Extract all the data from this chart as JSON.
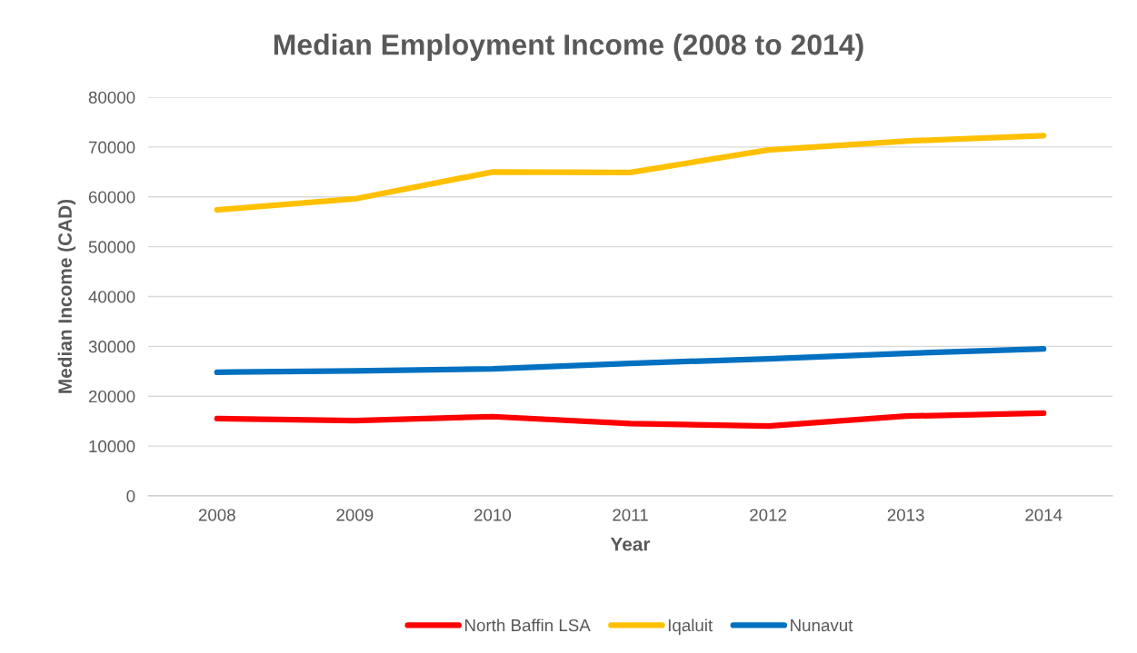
{
  "chart_data": {
    "type": "line",
    "title": "Median Employment Income (2008 to 2014)",
    "xlabel": "Year",
    "ylabel": "Median Income (CAD)",
    "categories": [
      "2008",
      "2009",
      "2010",
      "2011",
      "2012",
      "2013",
      "2014"
    ],
    "series": [
      {
        "name": "North Baffin LSA",
        "color": "#ff0000",
        "values": [
          15500,
          15100,
          15900,
          14500,
          14000,
          16000,
          16600
        ]
      },
      {
        "name": "Iqaluit",
        "color": "#ffc000",
        "values": [
          57400,
          59600,
          65000,
          64900,
          69400,
          71200,
          72300
        ]
      },
      {
        "name": "Nunavut",
        "color": "#0070c0",
        "values": [
          24800,
          25100,
          25500,
          26600,
          27500,
          28600,
          29500
        ]
      }
    ],
    "ylim": [
      0,
      80000
    ],
    "yticks": [
      0,
      10000,
      20000,
      30000,
      40000,
      50000,
      60000,
      70000,
      80000
    ],
    "grid": "y",
    "legend": "bottom",
    "marker": "none",
    "line_style": "solid"
  }
}
